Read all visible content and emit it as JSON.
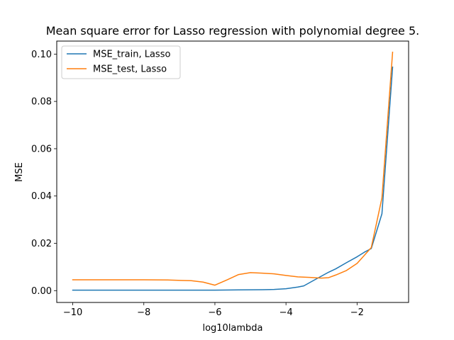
{
  "chart_data": {
    "type": "line",
    "title": "Mean square error for Lasso regression with polynomial degree 5.",
    "xlabel": "log10lambda",
    "ylabel": "MSE",
    "xlim": [
      -10.45,
      -0.55
    ],
    "ylim": [
      -0.005,
      0.1055
    ],
    "xticks": [
      -10,
      -8,
      -6,
      -4,
      -2
    ],
    "xtick_labels": [
      "−10",
      "−8",
      "−6",
      "−4",
      "−2"
    ],
    "yticks": [
      0.0,
      0.02,
      0.04,
      0.06,
      0.08,
      0.1
    ],
    "ytick_labels": [
      "0.00",
      "0.02",
      "0.04",
      "0.06",
      "0.08",
      "0.10"
    ],
    "grid": false,
    "legend_position": "top-left",
    "series": [
      {
        "name": "MSE_train, Lasso",
        "color": "#1f77b4",
        "x": [
          -10,
          -9.333,
          -8.667,
          -8.0,
          -7.333,
          -6.667,
          -6.0,
          -5.333,
          -4.667,
          -4.333,
          -4.0,
          -3.667,
          -3.5,
          -3.2,
          -2.8,
          -2.6,
          -2.3,
          -2.0,
          -1.8,
          -1.6,
          -1.3,
          -1.0
        ],
        "y": [
          0.0002,
          0.0002,
          0.0002,
          0.0002,
          0.0002,
          0.0002,
          0.0002,
          0.0003,
          0.0004,
          0.0005,
          0.0008,
          0.0015,
          0.002,
          0.0045,
          0.0078,
          0.0092,
          0.0118,
          0.0143,
          0.0162,
          0.0178,
          0.0325,
          0.0945
        ]
      },
      {
        "name": "MSE_test, Lasso",
        "color": "#ff7f0e",
        "x": [
          -10,
          -9.333,
          -8.667,
          -8.0,
          -7.333,
          -6.667,
          -6.333,
          -6.0,
          -5.667,
          -5.333,
          -5.0,
          -4.667,
          -4.333,
          -4.0,
          -3.667,
          -3.333,
          -3.0,
          -2.8,
          -2.6,
          -2.3,
          -2.0,
          -1.6,
          -1.3,
          -1.0
        ],
        "y": [
          0.0046,
          0.0046,
          0.0046,
          0.0046,
          0.0045,
          0.0042,
          0.0036,
          0.0023,
          0.0045,
          0.0068,
          0.0076,
          0.0074,
          0.0071,
          0.0064,
          0.0058,
          0.0056,
          0.0053,
          0.0055,
          0.0066,
          0.0085,
          0.0115,
          0.0182,
          0.0392,
          0.1008
        ]
      }
    ]
  }
}
